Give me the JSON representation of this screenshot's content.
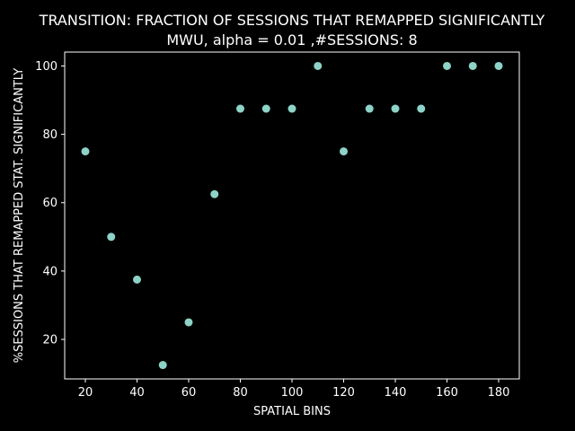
{
  "chart_data": {
    "type": "scatter",
    "title": "TRANSITION: FRACTION OF SESSIONS THAT REMAPPED SIGNIFICANTLY",
    "subtitle": "MWU, alpha = 0.01 ,#SESSIONS: 8",
    "xlabel": "SPATIAL BINS",
    "ylabel": "%SESSIONS THAT REMAPPED STAT. SIGNIFICANTLY",
    "xlim": [
      12.0,
      188.0
    ],
    "ylim": [
      8.44,
      104.06
    ],
    "xticks": [
      20,
      40,
      60,
      80,
      100,
      120,
      140,
      160,
      180
    ],
    "xtick_labels": [
      "20",
      "40",
      "60",
      "80",
      "100",
      "120",
      "140",
      "160",
      "180"
    ],
    "yticks": [
      20,
      40,
      60,
      80,
      100
    ],
    "ytick_labels": [
      "20",
      "40",
      "60",
      "80",
      "100"
    ],
    "grid": false,
    "marker_color": "#8dd3c7",
    "background": "#000000",
    "foreground": "#ffffff",
    "series": [
      {
        "x": [
          20,
          30,
          40,
          50,
          60,
          70,
          80,
          90,
          100,
          110,
          120,
          130,
          140,
          150,
          160,
          170,
          180
        ],
        "y": [
          75,
          50,
          37.5,
          12.5,
          25,
          62.5,
          87.5,
          87.5,
          87.5,
          100,
          75,
          87.5,
          87.5,
          87.5,
          100,
          100,
          100
        ]
      }
    ]
  }
}
